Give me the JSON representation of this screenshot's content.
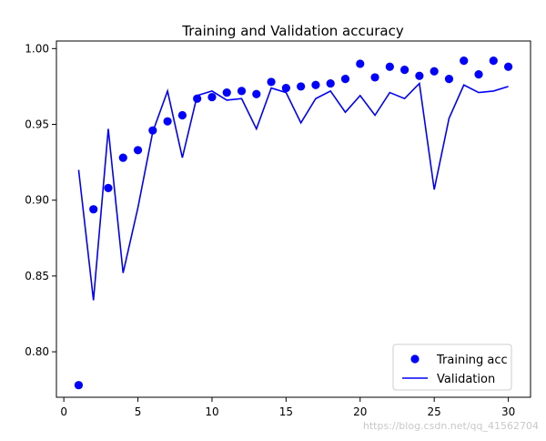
{
  "chart_data": {
    "type": "scatter+line",
    "title": "Training and Validation accuracy",
    "xlabel": "",
    "ylabel": "",
    "xlim": [
      -0.5,
      31.5
    ],
    "ylim": [
      0.77,
      1.005
    ],
    "xticks": [
      0,
      5,
      10,
      15,
      20,
      25,
      30
    ],
    "yticks": [
      0.8,
      0.85,
      0.9,
      0.95,
      1.0
    ],
    "xtick_labels": [
      "0",
      "5",
      "10",
      "15",
      "20",
      "25",
      "30"
    ],
    "ytick_labels": [
      "0.80",
      "0.85",
      "0.90",
      "0.95",
      "1.00"
    ],
    "legend_position": "lower-right",
    "grid": false,
    "series": [
      {
        "name": "Training acc",
        "style": "dots",
        "color": "#0000ff",
        "x": [
          1,
          2,
          3,
          4,
          5,
          6,
          7,
          8,
          9,
          10,
          11,
          12,
          13,
          14,
          15,
          16,
          17,
          18,
          19,
          20,
          21,
          22,
          23,
          24,
          25,
          26,
          27,
          28,
          29,
          30
        ],
        "y": [
          0.778,
          0.894,
          0.908,
          0.928,
          0.933,
          0.946,
          0.952,
          0.956,
          0.967,
          0.968,
          0.971,
          0.972,
          0.97,
          0.978,
          0.974,
          0.975,
          0.976,
          0.977,
          0.98,
          0.99,
          0.981,
          0.988,
          0.986,
          0.982,
          0.985,
          0.98,
          0.992,
          0.983,
          0.992,
          0.988
        ]
      },
      {
        "name": "Validation",
        "style": "line",
        "color": "#0000ff",
        "x": [
          1,
          2,
          3,
          4,
          5,
          6,
          7,
          8,
          9,
          10,
          11,
          12,
          13,
          14,
          15,
          16,
          17,
          18,
          19,
          20,
          21,
          22,
          23,
          24,
          25,
          26,
          27,
          28,
          29,
          30
        ],
        "y": [
          0.92,
          0.834,
          0.947,
          0.852,
          0.895,
          0.945,
          0.972,
          0.928,
          0.969,
          0.972,
          0.966,
          0.967,
          0.947,
          0.974,
          0.971,
          0.951,
          0.967,
          0.972,
          0.958,
          0.969,
          0.956,
          0.971,
          0.967,
          0.977,
          0.907,
          0.954,
          0.976,
          0.971,
          0.972,
          0.975
        ]
      }
    ]
  },
  "watermark": "https://blog.csdn.net/qq_41562704"
}
